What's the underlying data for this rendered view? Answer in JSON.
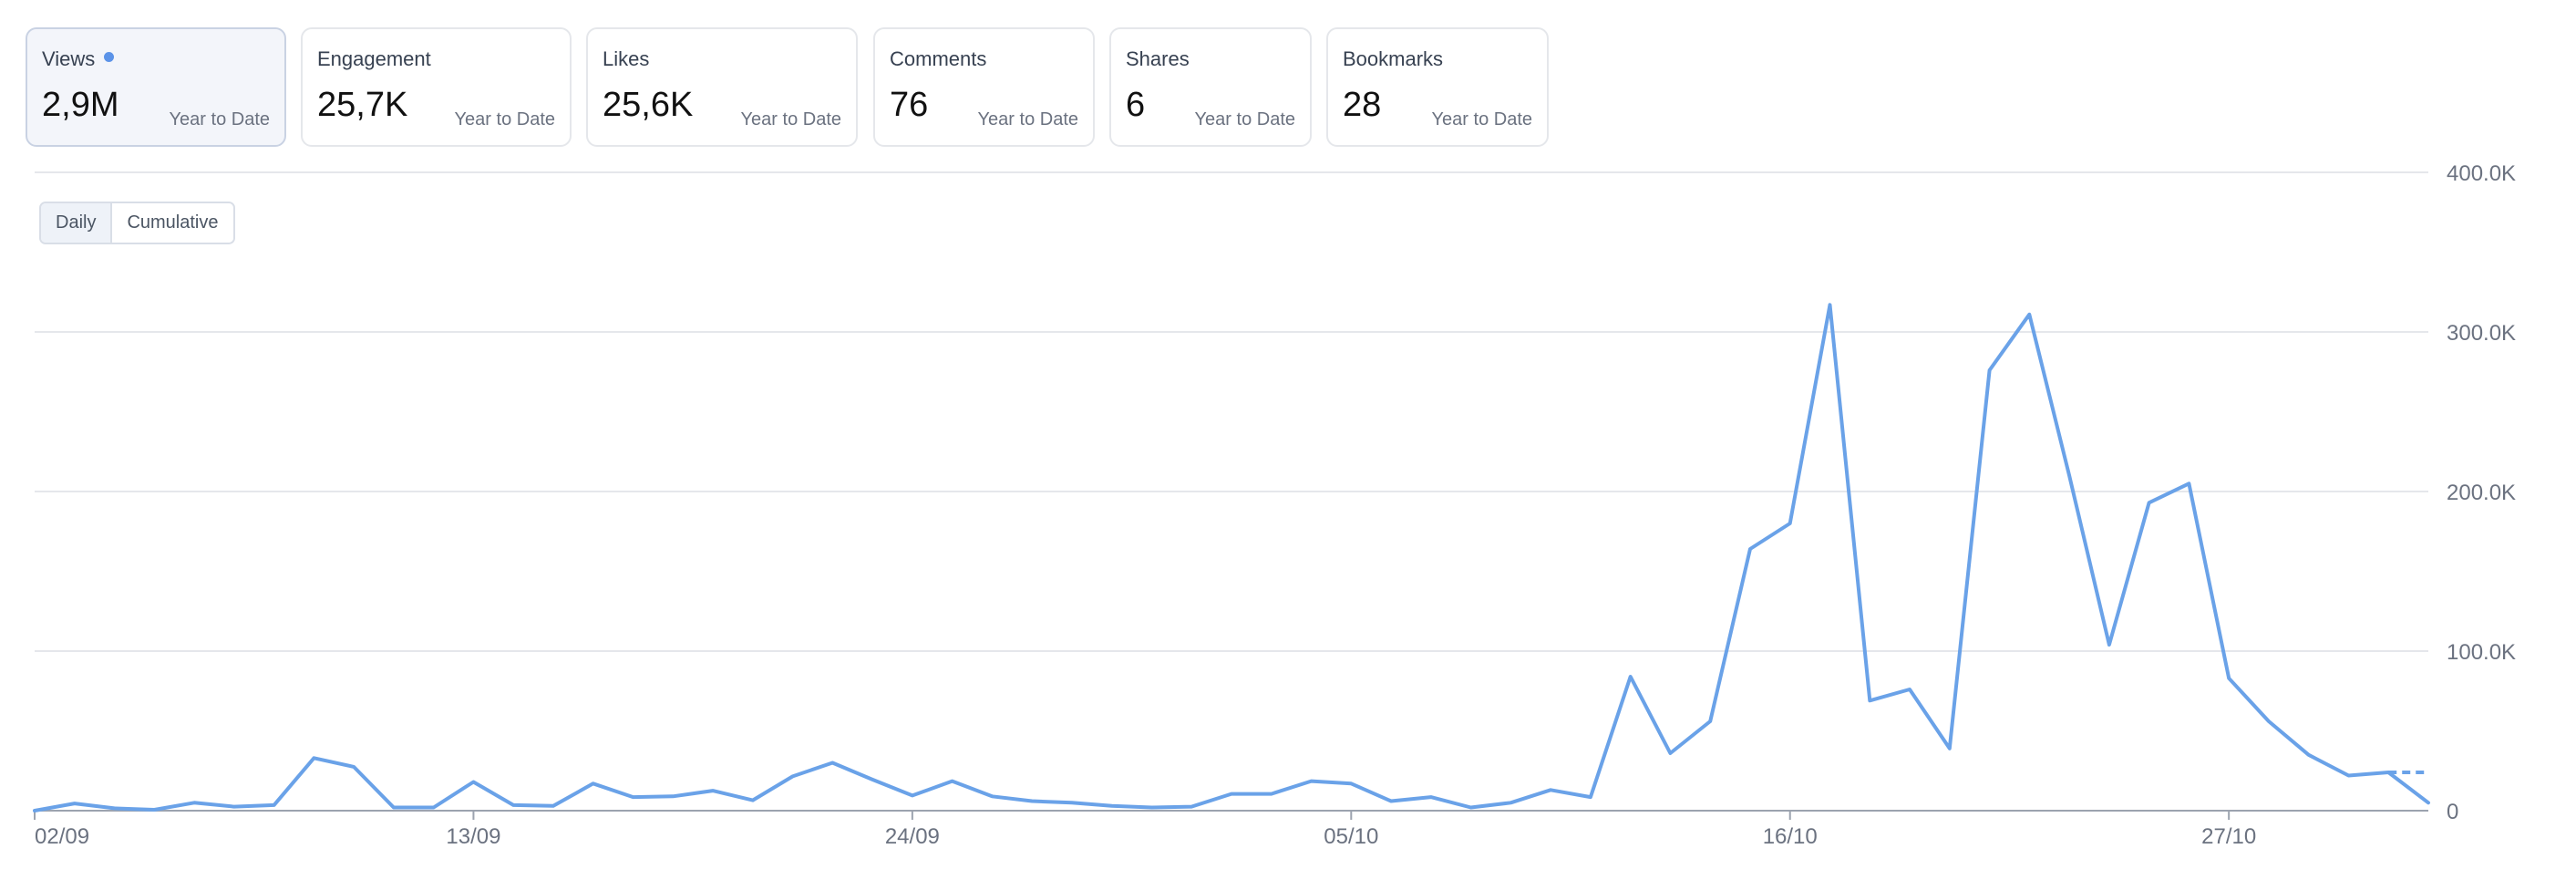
{
  "metrics": [
    {
      "label": "Views",
      "value": "2,9M",
      "period": "Year to Date",
      "active": true
    },
    {
      "label": "Engagement",
      "value": "25,7K",
      "period": "Year to Date",
      "active": false
    },
    {
      "label": "Likes",
      "value": "25,6K",
      "period": "Year to Date",
      "active": false
    },
    {
      "label": "Comments",
      "value": "76",
      "period": "Year to Date",
      "active": false
    },
    {
      "label": "Shares",
      "value": "6",
      "period": "Year to Date",
      "active": false
    },
    {
      "label": "Bookmarks",
      "value": "28",
      "period": "Year to Date",
      "active": false
    }
  ],
  "toggle": {
    "daily": "Daily",
    "cumulative": "Cumulative",
    "selected": "daily"
  },
  "colors": {
    "line": "#6aa2e8",
    "grid": "#e5e7eb",
    "axis": "#9ca3af",
    "tick_text": "#6b7280",
    "accent_dot": "#5b93e8"
  },
  "chart_data": {
    "type": "line",
    "title": "",
    "xlabel": "",
    "ylabel": "",
    "x_tick_labels": [
      "02/09",
      "13/09",
      "24/09",
      "05/10",
      "16/10",
      "27/10"
    ],
    "x_tick_index": [
      0,
      11,
      22,
      33,
      44,
      55
    ],
    "y_ticks": [
      0,
      100000,
      200000,
      300000,
      400000
    ],
    "y_tick_labels": [
      "0",
      "100.0K",
      "200.0K",
      "300.0K",
      "400.0K"
    ],
    "ylim": [
      0,
      400000
    ],
    "y_axis_position": "right",
    "grid": true,
    "legend": "none",
    "series": [
      {
        "values": [
          0,
          4500,
          1500,
          600,
          5000,
          2500,
          3500,
          33000,
          27500,
          2000,
          2000,
          18000,
          3500,
          3000,
          17000,
          8500,
          9000,
          12500,
          6500,
          21500,
          30000,
          19500,
          9500,
          18500,
          9000,
          6000,
          5000,
          3000,
          2000,
          2500,
          10500,
          10500,
          18500,
          17000,
          6000,
          8500,
          2000,
          5000,
          13000,
          8500,
          84000,
          36000,
          56000,
          164000,
          180000,
          317000,
          69000,
          76000,
          39000,
          276000,
          311000,
          210000,
          104000,
          193000,
          205000,
          83000,
          56000,
          35000,
          22000,
          24000,
          5000
        ]
      }
    ],
    "projected": {
      "from_index": 59,
      "to_index": 60,
      "value": 24000
    }
  }
}
